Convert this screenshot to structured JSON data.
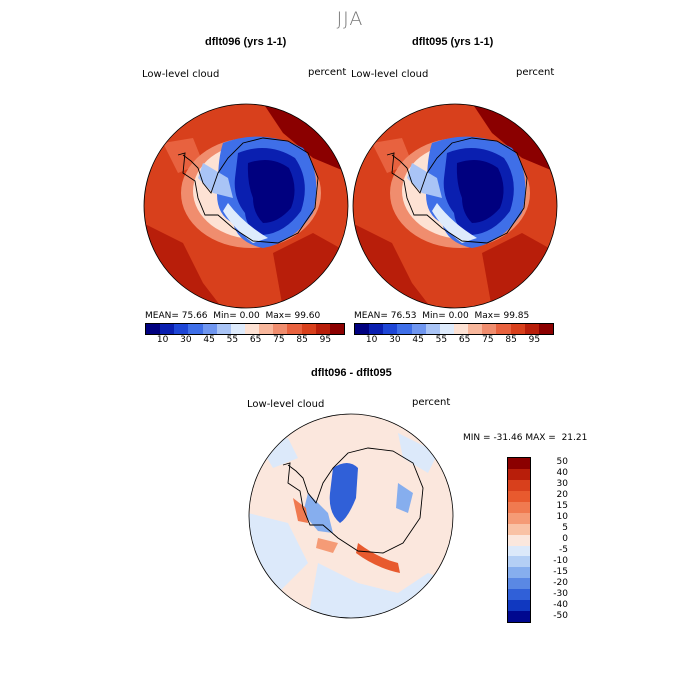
{
  "season": "JJA",
  "panels": [
    {
      "title": "dflt096 (yrs 1-1)",
      "field_label": "Low-level cloud",
      "units_label": "percent",
      "stats": {
        "mean": "75.66",
        "min": "0.00",
        "max": "99.60"
      }
    },
    {
      "title": "dflt095 (yrs 1-1)",
      "field_label": "Low-level cloud",
      "units_label": "percent",
      "stats": {
        "mean": "76.53",
        "min": "0.00",
        "max": "99.85"
      }
    }
  ],
  "stat_labels": {
    "mean": "MEAN=",
    "min": "Min=",
    "max": "Max="
  },
  "abs_colorbar": {
    "colors": [
      "#00007f",
      "#0a1fb0",
      "#1e46d6",
      "#3f6fe8",
      "#6f96f0",
      "#a9c4f6",
      "#deebfc",
      "#fde2d4",
      "#f8b79c",
      "#f08d6e",
      "#e8623f",
      "#d8401c",
      "#b81e0a",
      "#8b0000"
    ],
    "tick_labels": [
      "10",
      "30",
      "45",
      "55",
      "65",
      "75",
      "85",
      "95"
    ]
  },
  "diff": {
    "title": "dflt096 - dflt095",
    "field_label": "Low-level cloud",
    "units_label": "percent",
    "min_label": "MIN =",
    "min_value": "-31.46",
    "max_label": "MAX =",
    "max_value": "21.21",
    "colorbar": {
      "colors": [
        "#8b0000",
        "#b81e0a",
        "#d8401c",
        "#e85a2e",
        "#f07a50",
        "#f59b76",
        "#f9c2a5",
        "#fbe7dd",
        "#dce9fa",
        "#b4cff5",
        "#86aeee",
        "#5a88e4",
        "#3060d8",
        "#1038c0",
        "#00088f"
      ],
      "tick_labels": [
        "50",
        "40",
        "30",
        "20",
        "15",
        "10",
        "5",
        "0",
        "-5",
        "-10",
        "-15",
        "-20",
        "-30",
        "-40",
        "-50"
      ]
    }
  }
}
